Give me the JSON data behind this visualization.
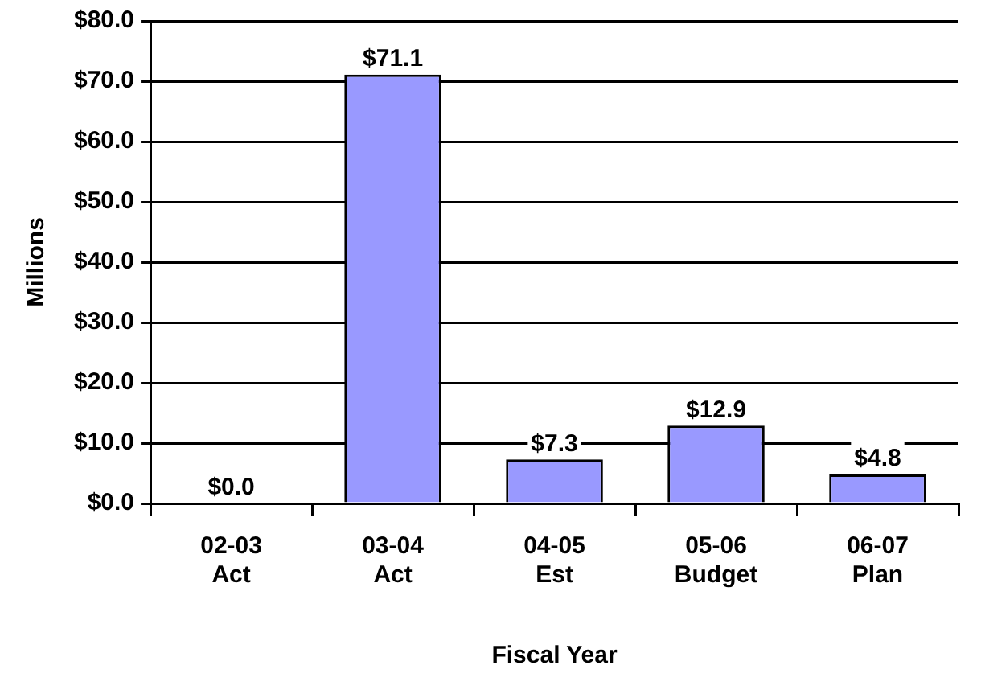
{
  "chart_data": {
    "type": "bar",
    "xlabel": "Fiscal Year",
    "ylabel": "Millions",
    "categories": [
      "02-03 Act",
      "03-04 Act",
      "04-05 Est",
      "05-06 Budget",
      "06-07 Plan"
    ],
    "values": [
      0,
      71.1,
      7.3,
      12.9,
      4.8
    ],
    "value_labels": [
      "$0.0",
      "$71.1",
      "$7.3",
      "$12.9",
      "$4.8"
    ],
    "color": "#9999ff",
    "ylim": [
      0,
      80
    ],
    "yticks": [
      {
        "value": 0,
        "label": "$0.0"
      },
      {
        "value": 10,
        "label": "$10.0"
      },
      {
        "value": 20,
        "label": "$20.0"
      },
      {
        "value": 30,
        "label": "$30.0"
      },
      {
        "value": 40,
        "label": "$40.0"
      },
      {
        "value": 50,
        "label": "$50.0"
      },
      {
        "value": 60,
        "label": "$60.0"
      },
      {
        "value": 70,
        "label": "$70.0"
      },
      {
        "value": 80,
        "label": "$80.0"
      }
    ],
    "grid": "y"
  }
}
